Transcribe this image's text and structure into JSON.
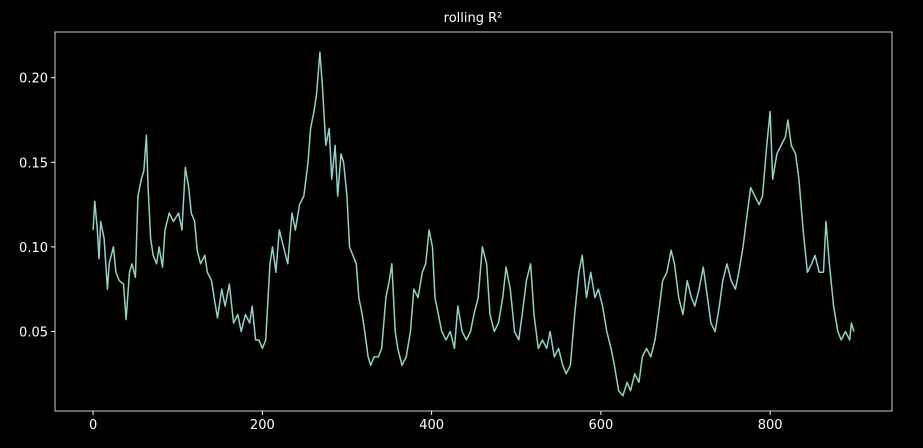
{
  "chart_data": {
    "type": "line",
    "title": "rolling R²",
    "x": [
      0,
      2,
      5,
      7,
      9,
      13,
      17,
      19,
      24,
      27,
      31,
      36,
      39,
      43,
      46,
      50,
      53,
      57,
      60,
      63,
      65,
      68,
      71,
      75,
      78,
      82,
      85,
      90,
      95,
      101,
      105,
      109,
      113,
      116,
      120,
      123,
      127,
      132,
      135,
      140,
      143,
      147,
      152,
      156,
      161,
      166,
      171,
      175,
      180,
      185,
      188,
      192,
      196,
      200,
      204,
      209,
      212,
      216,
      220,
      225,
      230,
      235,
      239,
      244,
      249,
      254,
      257,
      261,
      264,
      268,
      271,
      275,
      279,
      282,
      286,
      289,
      293,
      296,
      300,
      303,
      307,
      311,
      314,
      318,
      321,
      325,
      328,
      332,
      337,
      341,
      346,
      350,
      353,
      357,
      360,
      365,
      370,
      375,
      379,
      384,
      389,
      393,
      397,
      401,
      404,
      408,
      412,
      417,
      422,
      427,
      431,
      436,
      441,
      446,
      450,
      455,
      460,
      465,
      469,
      474,
      479,
      484,
      488,
      493,
      498,
      503,
      507,
      512,
      517,
      521,
      526,
      531,
      536,
      540,
      545,
      550,
      555,
      559,
      564,
      569,
      574,
      578,
      583,
      588,
      593,
      597,
      602,
      607,
      612,
      616,
      621,
      626,
      631,
      635,
      640,
      645,
      649,
      654,
      659,
      664,
      668,
      673,
      678,
      683,
      687,
      692,
      697,
      702,
      707,
      711,
      716,
      721,
      726,
      730,
      735,
      740,
      744,
      749,
      754,
      759,
      763,
      768,
      773,
      777,
      782,
      787,
      791,
      796,
      800,
      803,
      808,
      813,
      818,
      821,
      825,
      830,
      834,
      839,
      844,
      849,
      853,
      858,
      863,
      866,
      870,
      875,
      880,
      884,
      889,
      894,
      896,
      899
    ],
    "series": [
      {
        "color": "#8dd3c7",
        "values": [
          0.11,
          0.127,
          0.11,
          0.093,
          0.115,
          0.105,
          0.075,
          0.09,
          0.1,
          0.085,
          0.08,
          0.078,
          0.057,
          0.085,
          0.09,
          0.082,
          0.13,
          0.14,
          0.145,
          0.166,
          0.135,
          0.105,
          0.095,
          0.09,
          0.1,
          0.088,
          0.11,
          0.12,
          0.115,
          0.12,
          0.11,
          0.147,
          0.135,
          0.12,
          0.115,
          0.098,
          0.09,
          0.095,
          0.085,
          0.08,
          0.07,
          0.058,
          0.075,
          0.065,
          0.078,
          0.055,
          0.06,
          0.05,
          0.06,
          0.055,
          0.065,
          0.045,
          0.045,
          0.04,
          0.045,
          0.09,
          0.1,
          0.085,
          0.11,
          0.1,
          0.09,
          0.12,
          0.11,
          0.125,
          0.13,
          0.15,
          0.17,
          0.18,
          0.19,
          0.215,
          0.195,
          0.16,
          0.17,
          0.14,
          0.16,
          0.13,
          0.155,
          0.15,
          0.13,
          0.1,
          0.095,
          0.09,
          0.07,
          0.06,
          0.05,
          0.035,
          0.03,
          0.035,
          0.035,
          0.04,
          0.07,
          0.08,
          0.09,
          0.05,
          0.04,
          0.03,
          0.035,
          0.05,
          0.075,
          0.07,
          0.085,
          0.09,
          0.11,
          0.1,
          0.07,
          0.06,
          0.05,
          0.045,
          0.05,
          0.04,
          0.065,
          0.05,
          0.045,
          0.05,
          0.06,
          0.07,
          0.1,
          0.09,
          0.06,
          0.05,
          0.055,
          0.07,
          0.088,
          0.075,
          0.05,
          0.045,
          0.06,
          0.08,
          0.09,
          0.06,
          0.04,
          0.045,
          0.04,
          0.05,
          0.035,
          0.04,
          0.03,
          0.025,
          0.03,
          0.06,
          0.085,
          0.095,
          0.07,
          0.085,
          0.07,
          0.075,
          0.065,
          0.05,
          0.04,
          0.03,
          0.015,
          0.012,
          0.02,
          0.015,
          0.025,
          0.02,
          0.035,
          0.04,
          0.035,
          0.045,
          0.06,
          0.08,
          0.085,
          0.098,
          0.09,
          0.07,
          0.06,
          0.08,
          0.07,
          0.065,
          0.075,
          0.088,
          0.07,
          0.055,
          0.05,
          0.065,
          0.08,
          0.09,
          0.08,
          0.075,
          0.085,
          0.1,
          0.12,
          0.135,
          0.13,
          0.125,
          0.13,
          0.16,
          0.18,
          0.14,
          0.155,
          0.16,
          0.165,
          0.175,
          0.16,
          0.155,
          0.14,
          0.11,
          0.085,
          0.09,
          0.095,
          0.085,
          0.085,
          0.115,
          0.09,
          0.065,
          0.05,
          0.045,
          0.05,
          0.045,
          0.055,
          0.05
        ]
      }
    ],
    "xlim": [
      -45,
      944
    ],
    "xticks": [
      0,
      200,
      400,
      600,
      800
    ],
    "ylim": [
      0.003,
      0.227
    ],
    "yticks": [
      0.05,
      {
        "value": 0.1,
        "label": "0.10"
      },
      0.15,
      {
        "value": 0.2,
        "label": "0.20"
      }
    ],
    "grid": false
  }
}
